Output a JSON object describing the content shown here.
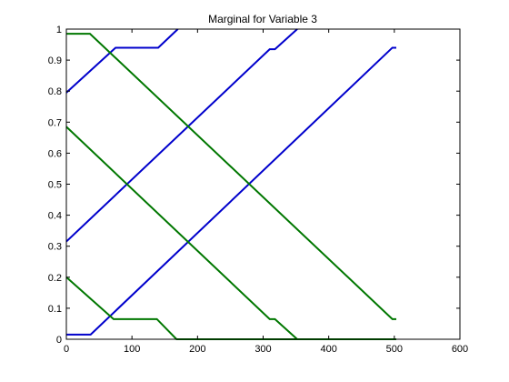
{
  "chart_data": {
    "type": "line",
    "title": "Marginal for Variable 3",
    "xlabel": "",
    "ylabel": "",
    "xlim": [
      0,
      600
    ],
    "ylim": [
      0,
      1
    ],
    "xticks": [
      "0",
      "100",
      "200",
      "300",
      "400",
      "500",
      "600"
    ],
    "yticks": [
      "0",
      "0.1",
      "0.2",
      "0.3",
      "0.4",
      "0.5",
      "0.6",
      "0.7",
      "0.8",
      "0.9",
      "1"
    ],
    "grid": false,
    "legend": "none",
    "colors": {
      "blue": "#0000cc",
      "green": "#007700",
      "axis": "#000000"
    },
    "series": [
      {
        "color": "blue",
        "x": [
          0,
          75,
          140,
          170
        ],
        "y": [
          0.795,
          0.94,
          0.94,
          1.0
        ]
      },
      {
        "color": "blue",
        "x": [
          0,
          310,
          318,
          352
        ],
        "y": [
          0.315,
          0.935,
          0.935,
          1.0
        ]
      },
      {
        "color": "blue",
        "x": [
          0,
          37,
          497,
          503
        ],
        "y": [
          0.015,
          0.015,
          0.94,
          0.94
        ]
      },
      {
        "color": "green",
        "x": [
          0,
          36,
          497,
          503
        ],
        "y": [
          0.985,
          0.985,
          0.065,
          0.065
        ]
      },
      {
        "color": "green",
        "x": [
          0,
          310,
          318,
          352,
          503
        ],
        "y": [
          0.685,
          0.065,
          0.065,
          0.0,
          0.0
        ]
      },
      {
        "color": "green",
        "x": [
          0,
          72,
          138,
          168,
          503
        ],
        "y": [
          0.2,
          0.065,
          0.065,
          0.0,
          0.0
        ]
      }
    ]
  }
}
